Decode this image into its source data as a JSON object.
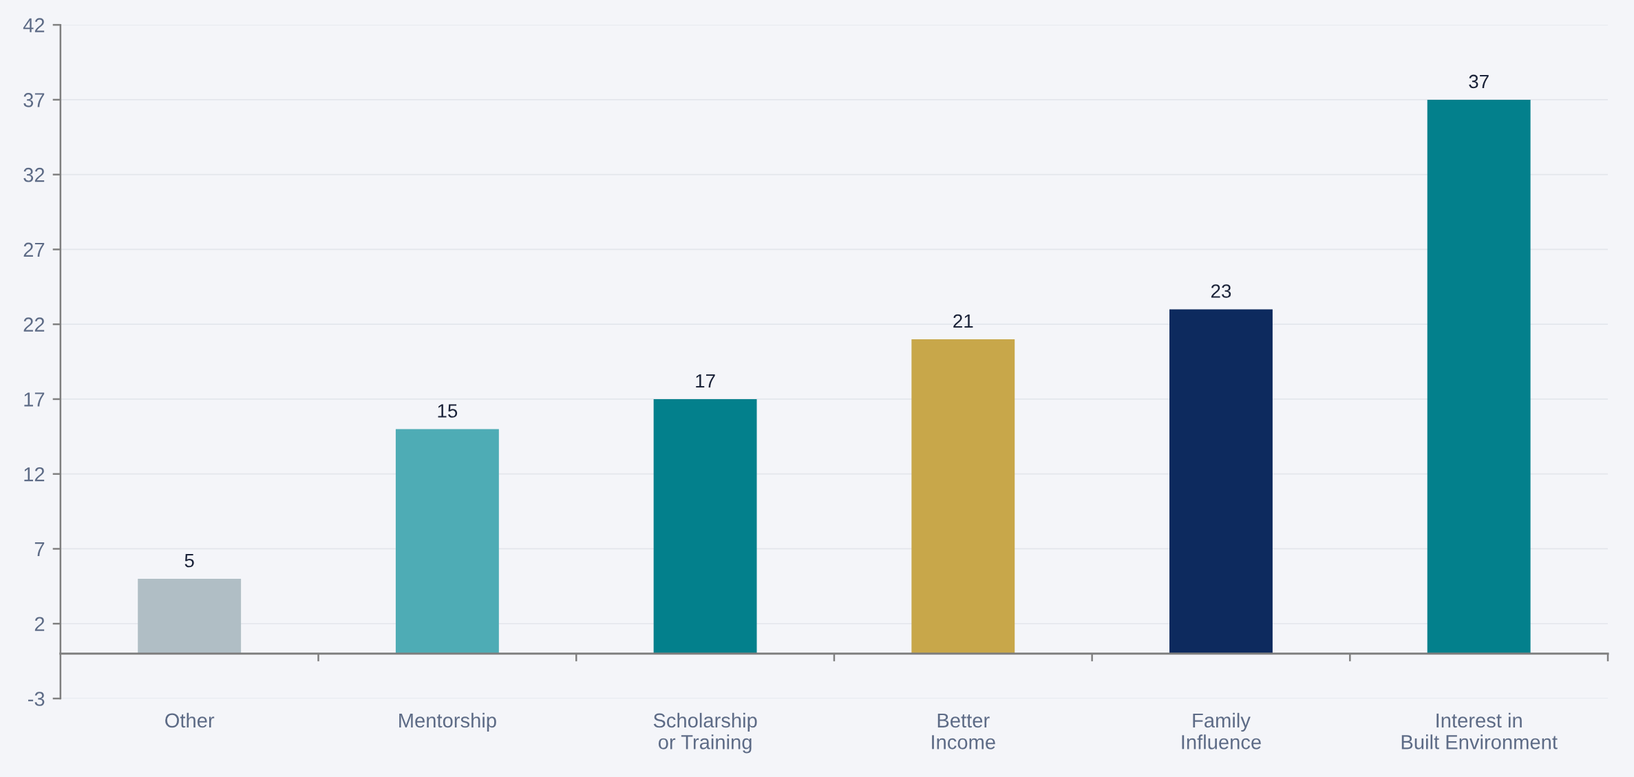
{
  "chart_data": {
    "type": "bar",
    "categories": [
      "Other",
      "Mentorship",
      "Scholarship\nor Training",
      "Better\nIncome",
      "Family\nInfluence",
      "Interest in\nBuilt Environment"
    ],
    "values": [
      5,
      15,
      17,
      21,
      23,
      37
    ],
    "colors": [
      "#b0bec5",
      "#4eacb5",
      "#03808c",
      "#c8a74a",
      "#0d2a5e",
      "#03808c"
    ],
    "ylim": [
      -3,
      42
    ],
    "yticks": [
      -3,
      2,
      7,
      12,
      17,
      22,
      27,
      32,
      37,
      42
    ],
    "grid": "y",
    "data_labels": true
  }
}
